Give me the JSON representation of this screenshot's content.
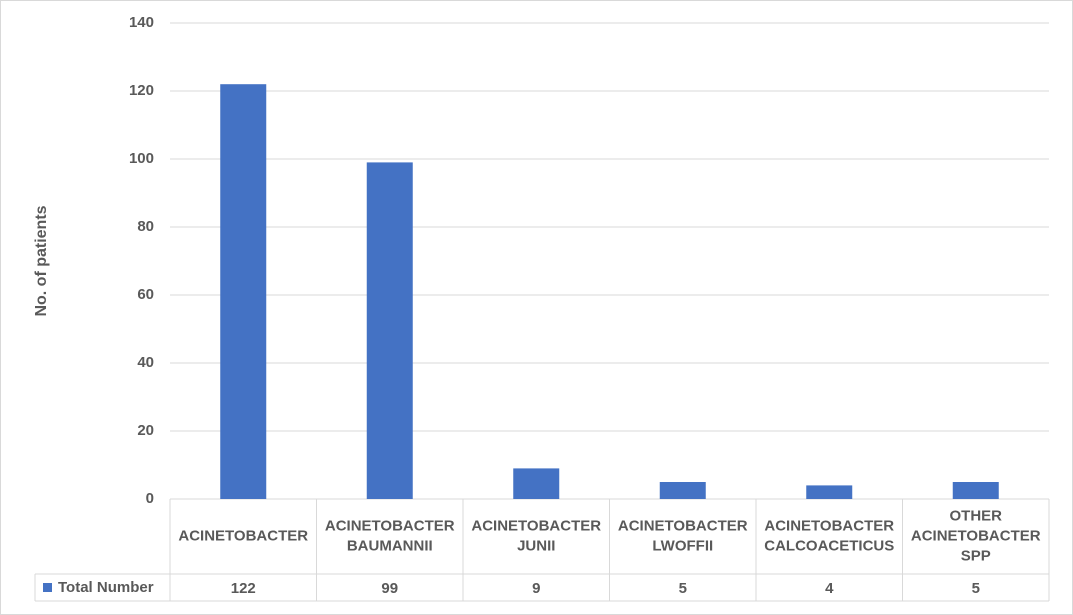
{
  "chart_data": {
    "type": "bar",
    "y_label": "No. of patients",
    "categories": [
      "ACINETOBACTER",
      "ACINETOBACTER BAUMANNII",
      "ACINETOBACTER JUNII",
      "ACINETOBACTER LWOFFII",
      "ACINETOBACTER CALCOACETICUS",
      "OTHER ACINETOBACTER SPP"
    ],
    "series": [
      {
        "name": "Total Number",
        "color": "#4472c4",
        "values": [
          122,
          99,
          9,
          5,
          4,
          5
        ]
      }
    ],
    "ylim": [
      0,
      140
    ],
    "yticks": [
      0,
      20,
      40,
      60,
      80,
      100,
      120,
      140
    ],
    "grid": true
  }
}
